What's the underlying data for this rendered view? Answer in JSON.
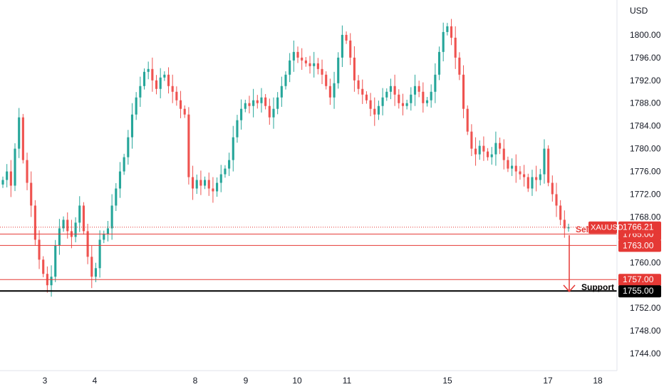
{
  "chart_data": {
    "type": "candlestick",
    "symbol": "XAUUSD",
    "currency_label": "USD",
    "ylim": [
      1741.5,
      1805.5
    ],
    "grid": false,
    "colors": {
      "up": "#26a69a",
      "down": "#ef5350",
      "level": "#e53935",
      "support": "#000000",
      "text": "#131722"
    },
    "y_ticks": [
      "1744.00",
      "1748.00",
      "1752.00",
      "1760.00",
      "1768.00",
      "1772.00",
      "1776.00",
      "1780.00",
      "1784.00",
      "1788.00",
      "1792.00",
      "1796.00",
      "1800.00"
    ],
    "x_ticks": [
      "3",
      "4",
      "8",
      "9",
      "10",
      "11",
      "15",
      "17",
      "18"
    ],
    "last_price": {
      "value": 1766.21,
      "label": "1766.21",
      "name": "XAUUSD"
    },
    "levels": [
      {
        "value": 1765.0,
        "label": "1765.00",
        "style": "red"
      },
      {
        "value": 1763.0,
        "label": "1763.00",
        "style": "red"
      },
      {
        "value": 1757.0,
        "label": "1757.00",
        "style": "red"
      },
      {
        "value": 1755.0,
        "label": "1755.00",
        "style": "black"
      }
    ],
    "annotations": {
      "sell": "Sell",
      "support": "Support"
    },
    "series": [
      1774.5,
      1776.0,
      1773.5,
      1780.0,
      1785.5,
      1778.0,
      1774.0,
      1770.0,
      1764.0,
      1760.5,
      1758.0,
      1756.0,
      1757.5,
      1763.0,
      1766.0,
      1767.5,
      1765.5,
      1764.5,
      1767.0,
      1770.0,
      1765.5,
      1761.0,
      1757.5,
      1759.0,
      1764.0,
      1765.0,
      1766.0,
      1770.0,
      1773.0,
      1776.0,
      1778.5,
      1782.0,
      1786.0,
      1789.0,
      1791.0,
      1793.5,
      1794.0,
      1792.0,
      1790.5,
      1792.5,
      1793.0,
      1791.0,
      1790.0,
      1788.5,
      1787.0,
      1786.0,
      1775.0,
      1773.0,
      1774.5,
      1773.5,
      1774.5,
      1773.0,
      1772.5,
      1774.0,
      1775.5,
      1776.5,
      1778.0,
      1782.0,
      1785.0,
      1787.0,
      1788.0,
      1787.5,
      1788.5,
      1788.0,
      1789.0,
      1787.5,
      1785.5,
      1787.0,
      1789.0,
      1791.0,
      1793.0,
      1795.5,
      1797.0,
      1796.0,
      1795.5,
      1795.0,
      1794.5,
      1795.0,
      1794.0,
      1793.0,
      1791.0,
      1789.0,
      1791.5,
      1796.0,
      1800.0,
      1799.0,
      1796.0,
      1792.0,
      1790.5,
      1789.5,
      1788.5,
      1787.0,
      1786.0,
      1787.5,
      1789.0,
      1790.0,
      1791.0,
      1789.5,
      1788.0,
      1787.5,
      1788.0,
      1789.5,
      1791.0,
      1790.0,
      1788.0,
      1788.5,
      1790.0,
      1793.0,
      1797.0,
      1800.5,
      1801.5,
      1799.5,
      1796.0,
      1793.0,
      1787.0,
      1783.0,
      1780.0,
      1779.0,
      1780.5,
      1779.5,
      1778.5,
      1779.0,
      1781.0,
      1780.0,
      1778.0,
      1776.5,
      1777.0,
      1776.0,
      1775.5,
      1775.0,
      1773.0,
      1775.0,
      1774.5,
      1775.5,
      1780.0,
      1774.0,
      1772.0,
      1770.0,
      1767.5,
      1766.0,
      1766.21
    ]
  }
}
